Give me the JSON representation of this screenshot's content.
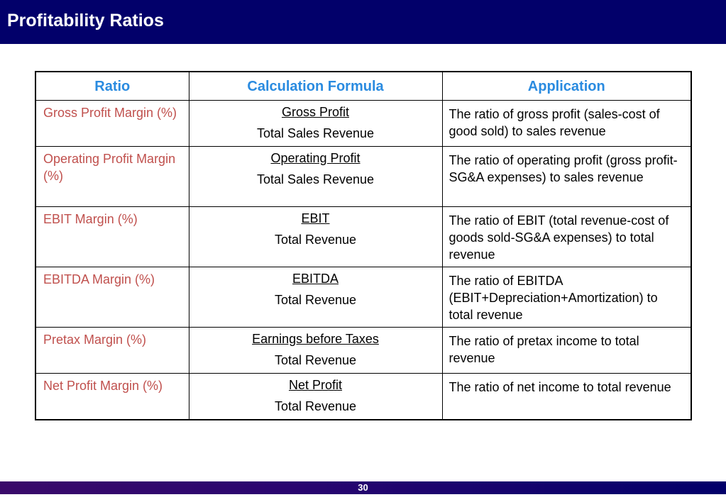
{
  "slide": {
    "title": "Profitability Ratios",
    "page_number": "30"
  },
  "table": {
    "headers": [
      "Ratio",
      "Calculation Formula",
      "Application"
    ],
    "rows": [
      {
        "ratio": "Gross Profit Margin (%)",
        "numerator": "Gross Profit",
        "denominator": "Total Sales Revenue",
        "application": "The ratio of gross profit (sales-cost of good sold) to sales revenue"
      },
      {
        "ratio": "Operating Profit Margin (%)",
        "numerator": "Operating Profit",
        "denominator": "Total Sales Revenue",
        "application": "The ratio of operating profit (gross profit-SG&A expenses) to sales revenue"
      },
      {
        "ratio": "EBIT Margin (%)",
        "numerator": "EBIT",
        "denominator": "Total Revenue",
        "application": "The ratio of EBIT (total revenue-cost of goods sold-SG&A expenses) to total revenue"
      },
      {
        "ratio": "EBITDA Margin (%)",
        "numerator": "EBITDA",
        "denominator": "Total Revenue",
        "application": "The ratio of EBITDA (EBIT+Depreciation+Amortization) to total revenue"
      },
      {
        "ratio": "Pretax Margin (%)",
        "numerator": "Earnings before Taxes",
        "denominator": "Total Revenue",
        "application": "The ratio of pretax income to total revenue"
      },
      {
        "ratio": "Net Profit Margin (%)",
        "numerator": "Net Profit",
        "denominator": "Total Revenue",
        "application": "The ratio of net income to total revenue"
      }
    ]
  },
  "colors": {
    "title_bar": "#02006a",
    "header_text": "#2a8be0",
    "ratio_text": "#c0504d"
  }
}
